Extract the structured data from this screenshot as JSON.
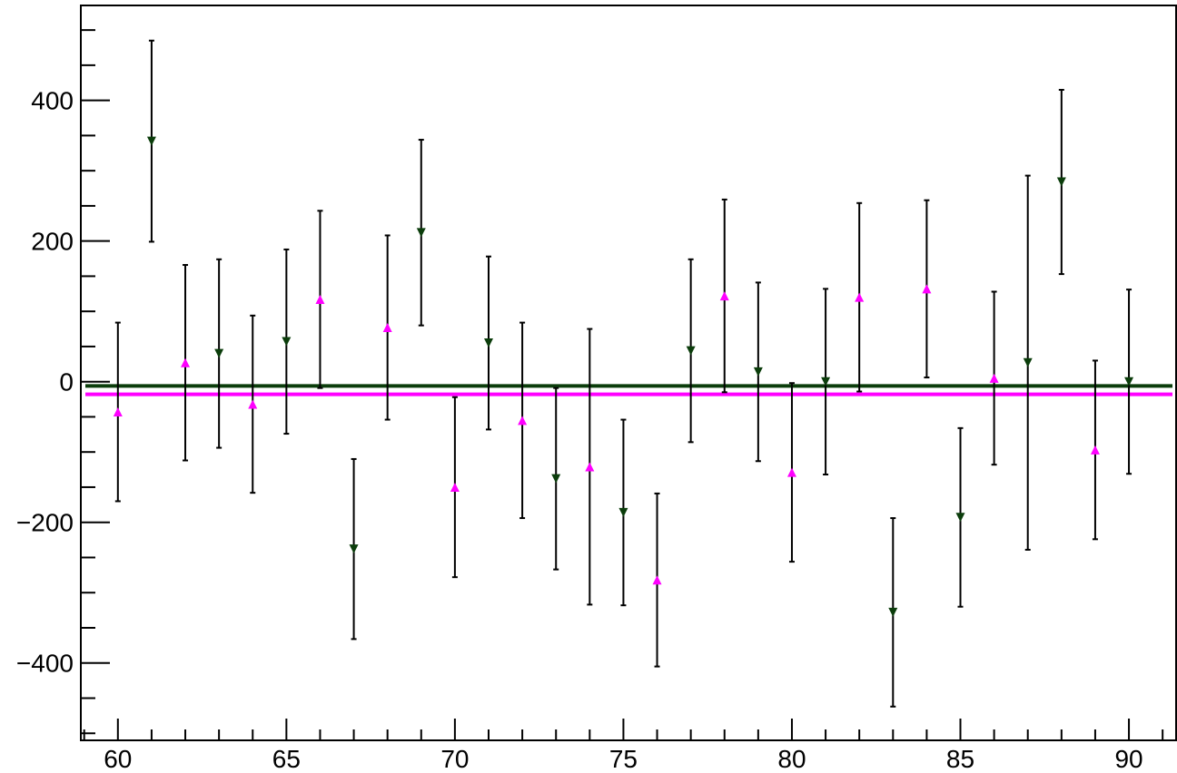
{
  "chart_data": {
    "type": "scatter",
    "title": "",
    "xlabel": "",
    "ylabel": "",
    "xlim": [
      58.9,
      91.4
    ],
    "ylim": [
      -510,
      535
    ],
    "x_ticks": [
      60,
      65,
      70,
      75,
      80,
      85,
      90
    ],
    "y_ticks": [
      -400,
      -200,
      0,
      200,
      400
    ],
    "x_tick_labels": [
      "60",
      "65",
      "70",
      "75",
      "80",
      "85",
      "90"
    ],
    "y_tick_labels": [
      "−400",
      "−200",
      "0",
      "200",
      "400"
    ],
    "grid": false,
    "legend": false,
    "series": [
      {
        "color": "#0b3d0b",
        "marker": "triangle-down",
        "points": [
          {
            "x": 61,
            "y": 342,
            "err": 143
          },
          {
            "x": 63,
            "y": 40,
            "err": 134
          },
          {
            "x": 65,
            "y": 57,
            "err": 131
          },
          {
            "x": 67,
            "y": -238,
            "err": 128
          },
          {
            "x": 69,
            "y": 212,
            "err": 132
          },
          {
            "x": 71,
            "y": 55,
            "err": 123
          },
          {
            "x": 73,
            "y": -138,
            "err": 129
          },
          {
            "x": 75,
            "y": -186,
            "err": 132
          },
          {
            "x": 77,
            "y": 44,
            "err": 130
          },
          {
            "x": 79,
            "y": 14,
            "err": 127
          },
          {
            "x": 81,
            "y": 0,
            "err": 132
          },
          {
            "x": 83,
            "y": -328,
            "err": 134
          },
          {
            "x": 85,
            "y": -193,
            "err": 127
          },
          {
            "x": 87,
            "y": 27,
            "err": 266
          },
          {
            "x": 88,
            "y": 284,
            "err": 131
          },
          {
            "x": 90,
            "y": 0,
            "err": 131
          }
        ],
        "fit_y": -6
      },
      {
        "color": "#ff00ff",
        "marker": "triangle-up",
        "points": [
          {
            "x": 60,
            "y": -43,
            "err": 127
          },
          {
            "x": 62,
            "y": 27,
            "err": 139
          },
          {
            "x": 64,
            "y": -32,
            "err": 126
          },
          {
            "x": 66,
            "y": 117,
            "err": 126
          },
          {
            "x": 68,
            "y": 77,
            "err": 131
          },
          {
            "x": 70,
            "y": -150,
            "err": 128
          },
          {
            "x": 72,
            "y": -55,
            "err": 139
          },
          {
            "x": 74,
            "y": -121,
            "err": 196
          },
          {
            "x": 76,
            "y": -282,
            "err": 123
          },
          {
            "x": 78,
            "y": 122,
            "err": 137
          },
          {
            "x": 80,
            "y": -129,
            "err": 127
          },
          {
            "x": 82,
            "y": 120,
            "err": 134
          },
          {
            "x": 84,
            "y": 132,
            "err": 126
          },
          {
            "x": 86,
            "y": 5,
            "err": 123
          },
          {
            "x": 89,
            "y": -97,
            "err": 127
          }
        ],
        "fit_y": -18
      }
    ]
  }
}
